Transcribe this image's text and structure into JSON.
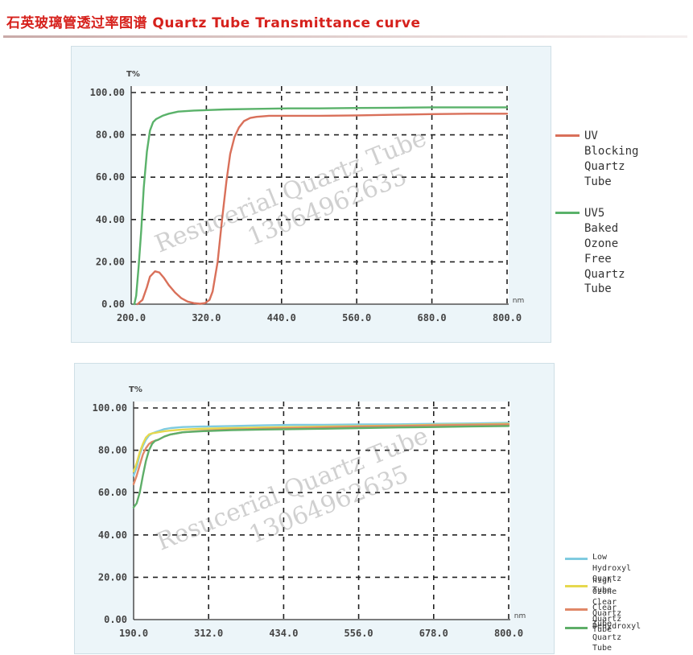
{
  "page_title": "石英玻璃管透过率图谱  Quartz Tube Transmittance curve",
  "watermark": {
    "line1": "Resucerial Quartz Tube",
    "line2": "13064962635"
  },
  "chart_data": [
    {
      "type": "line",
      "ylabel": "T%",
      "xlabel": "nm",
      "xlim": [
        200,
        800
      ],
      "ylim": [
        0,
        100
      ],
      "x_ticks": [
        "200.0",
        "320.0",
        "440.0",
        "560.0",
        "680.0",
        "800.0"
      ],
      "y_ticks": [
        "0.00",
        "20.00",
        "40.00",
        "60.00",
        "80.00",
        "100.00"
      ],
      "grid": true,
      "legend_position": "right",
      "series": [
        {
          "name": "UV Blocking\nQuartz Tube",
          "color": "#d9705a",
          "x": [
            210,
            218,
            225,
            230,
            238,
            245,
            252,
            260,
            270,
            280,
            290,
            300,
            310,
            318,
            325,
            330,
            338,
            345,
            352,
            358,
            365,
            372,
            380,
            390,
            400,
            420,
            450,
            500,
            560,
            620,
            680,
            740,
            800
          ],
          "y": [
            0,
            2,
            8,
            13,
            15.5,
            15,
            12.5,
            9,
            5.5,
            2.8,
            1.2,
            0.5,
            0.2,
            0.5,
            2,
            6,
            20,
            40,
            58,
            71,
            79,
            83.5,
            86.5,
            88,
            88.5,
            89,
            89,
            89,
            89.2,
            89.5,
            89.8,
            90,
            90
          ]
        },
        {
          "name": "UV5 Baked\nOzone Free\nQuartz Tube",
          "color": "#5ab26a",
          "x": [
            205,
            208,
            212,
            216,
            220,
            225,
            230,
            235,
            240,
            250,
            260,
            275,
            300,
            350,
            400,
            450,
            500,
            560,
            620,
            680,
            740,
            800
          ],
          "y": [
            0,
            4,
            18,
            35,
            55,
            72,
            82,
            86,
            87.5,
            89,
            90,
            91,
            91.5,
            92,
            92.3,
            92.5,
            92.5,
            92.7,
            92.8,
            93,
            93,
            93
          ]
        }
      ]
    },
    {
      "type": "line",
      "ylabel": "T%",
      "xlabel": "nm",
      "xlim": [
        190,
        800
      ],
      "ylim": [
        0,
        100
      ],
      "x_ticks": [
        "190.0",
        "312.0",
        "434.0",
        "556.0",
        "678.0",
        "800.0"
      ],
      "y_ticks": [
        "0.00",
        "20.00",
        "40.00",
        "60.00",
        "80.00",
        "100.00"
      ],
      "grid": true,
      "legend_position": "right",
      "series": [
        {
          "name": "Low Hydroxyl\nQuartz Tube",
          "color": "#7fcbe0",
          "x": [
            190,
            195,
            200,
            205,
            210,
            215,
            220,
            225,
            230,
            240,
            250,
            270,
            300,
            350,
            400,
            450,
            500,
            556,
            620,
            678,
            740,
            800
          ],
          "y": [
            68,
            72,
            78,
            82,
            85,
            87,
            88,
            88.5,
            89,
            90,
            90.5,
            91,
            91.2,
            91.5,
            91.8,
            92,
            92,
            92.2,
            92.3,
            92.5,
            92.7,
            93
          ]
        },
        {
          "name": "high Ozone\nClear Quartz Tube",
          "color": "#e6d84e",
          "x": [
            190,
            195,
            200,
            205,
            210,
            215,
            220,
            225,
            230,
            240,
            250,
            270,
            300,
            350,
            400,
            450,
            500,
            556,
            620,
            678,
            740,
            800
          ],
          "y": [
            70,
            74,
            79,
            83,
            86,
            87.5,
            88,
            88.2,
            88.5,
            89,
            89.3,
            89.8,
            90.2,
            90.5,
            90.8,
            91,
            91.2,
            91.5,
            91.7,
            92,
            92.2,
            92.5
          ]
        },
        {
          "name": "Clear Quartz Tube",
          "color": "#e08868",
          "x": [
            190,
            195,
            200,
            205,
            210,
            215,
            220,
            225,
            230,
            240,
            250,
            270,
            300,
            350,
            400,
            450,
            500,
            556,
            620,
            678,
            740,
            800
          ],
          "y": [
            64,
            68,
            73,
            78,
            81,
            83,
            84,
            84.5,
            85,
            86.5,
            87.5,
            88.5,
            89.2,
            89.8,
            90.2,
            90.5,
            90.8,
            91.2,
            91.5,
            91.8,
            92,
            92.2
          ]
        },
        {
          "name": "Dehydroxyl Quartz\nTube",
          "color": "#5eae68",
          "x": [
            190,
            195,
            200,
            205,
            210,
            215,
            220,
            225,
            230,
            240,
            250,
            270,
            300,
            350,
            400,
            450,
            500,
            556,
            620,
            678,
            740,
            800
          ],
          "y": [
            53,
            55,
            60,
            68,
            75,
            80,
            83,
            84.5,
            85,
            86.5,
            87.5,
            88.5,
            89,
            89.5,
            89.8,
            90,
            90.2,
            90.5,
            90.8,
            91,
            91.3,
            91.5
          ]
        }
      ]
    }
  ]
}
